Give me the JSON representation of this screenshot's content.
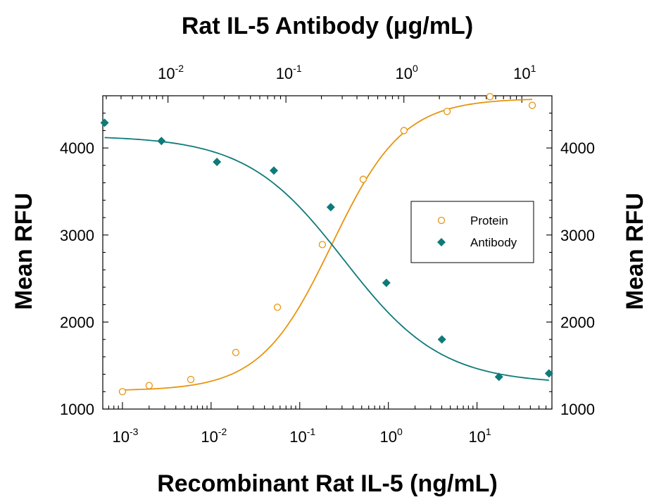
{
  "chart_data": {
    "type": "scatter",
    "title": "Rat IL-5 Antibody (μg/mL)",
    "xlabel": "Recombinant Rat IL-5 (ng/mL)",
    "ylabel": "Mean RFU",
    "ylabel_right": "Mean RFU",
    "x_scale": "log",
    "xlim": [
      0.0006,
      70
    ],
    "ylim": [
      1000,
      4600
    ],
    "x_top_scale": "log",
    "x_top_lim": [
      0.0028,
      18
    ],
    "yticks": [
      1000,
      2000,
      3000,
      4000
    ],
    "xticks_bottom": [
      {
        "base": "10",
        "exp": "-3",
        "value": 0.001
      },
      {
        "base": "10",
        "exp": "-2",
        "value": 0.01
      },
      {
        "base": "10",
        "exp": "-1",
        "value": 0.1
      },
      {
        "base": "10",
        "exp": "0",
        "value": 1
      },
      {
        "base": "10",
        "exp": "1",
        "value": 10
      }
    ],
    "xticks_top": [
      {
        "base": "10",
        "exp": "-2",
        "value": 0.01
      },
      {
        "base": "10",
        "exp": "-1",
        "value": 0.1
      },
      {
        "base": "10",
        "exp": "0",
        "value": 1
      },
      {
        "base": "10",
        "exp": "1",
        "value": 10
      }
    ],
    "legend_position": "center-right",
    "series": [
      {
        "name": "Protein",
        "axis": "bottom",
        "marker": "open-circle",
        "color": "#E8940F",
        "x": [
          0.001,
          0.002,
          0.0059,
          0.019,
          0.056,
          0.18,
          0.52,
          1.5,
          4.6,
          14,
          42
        ],
        "y": [
          1200,
          1270,
          1340,
          1650,
          2170,
          2890,
          3640,
          4200,
          4420,
          4590,
          4490
        ],
        "fit": {
          "bottom": 1210,
          "top": 4570,
          "ec50": 0.23,
          "hill": 1.08
        }
      },
      {
        "name": "Antibody",
        "axis": "top",
        "marker": "filled-diamond",
        "color": "#0F7A7A",
        "x": [
          0.0029,
          0.0088,
          0.026,
          0.079,
          0.24,
          0.71,
          2.1,
          6.4,
          17
        ],
        "y": [
          4290,
          4080,
          3840,
          3740,
          3320,
          2450,
          1800,
          1370,
          1410
        ],
        "fit": {
          "bottom": 1290,
          "top": 4140,
          "ec50": 0.31,
          "hill": -1.05
        }
      }
    ]
  }
}
